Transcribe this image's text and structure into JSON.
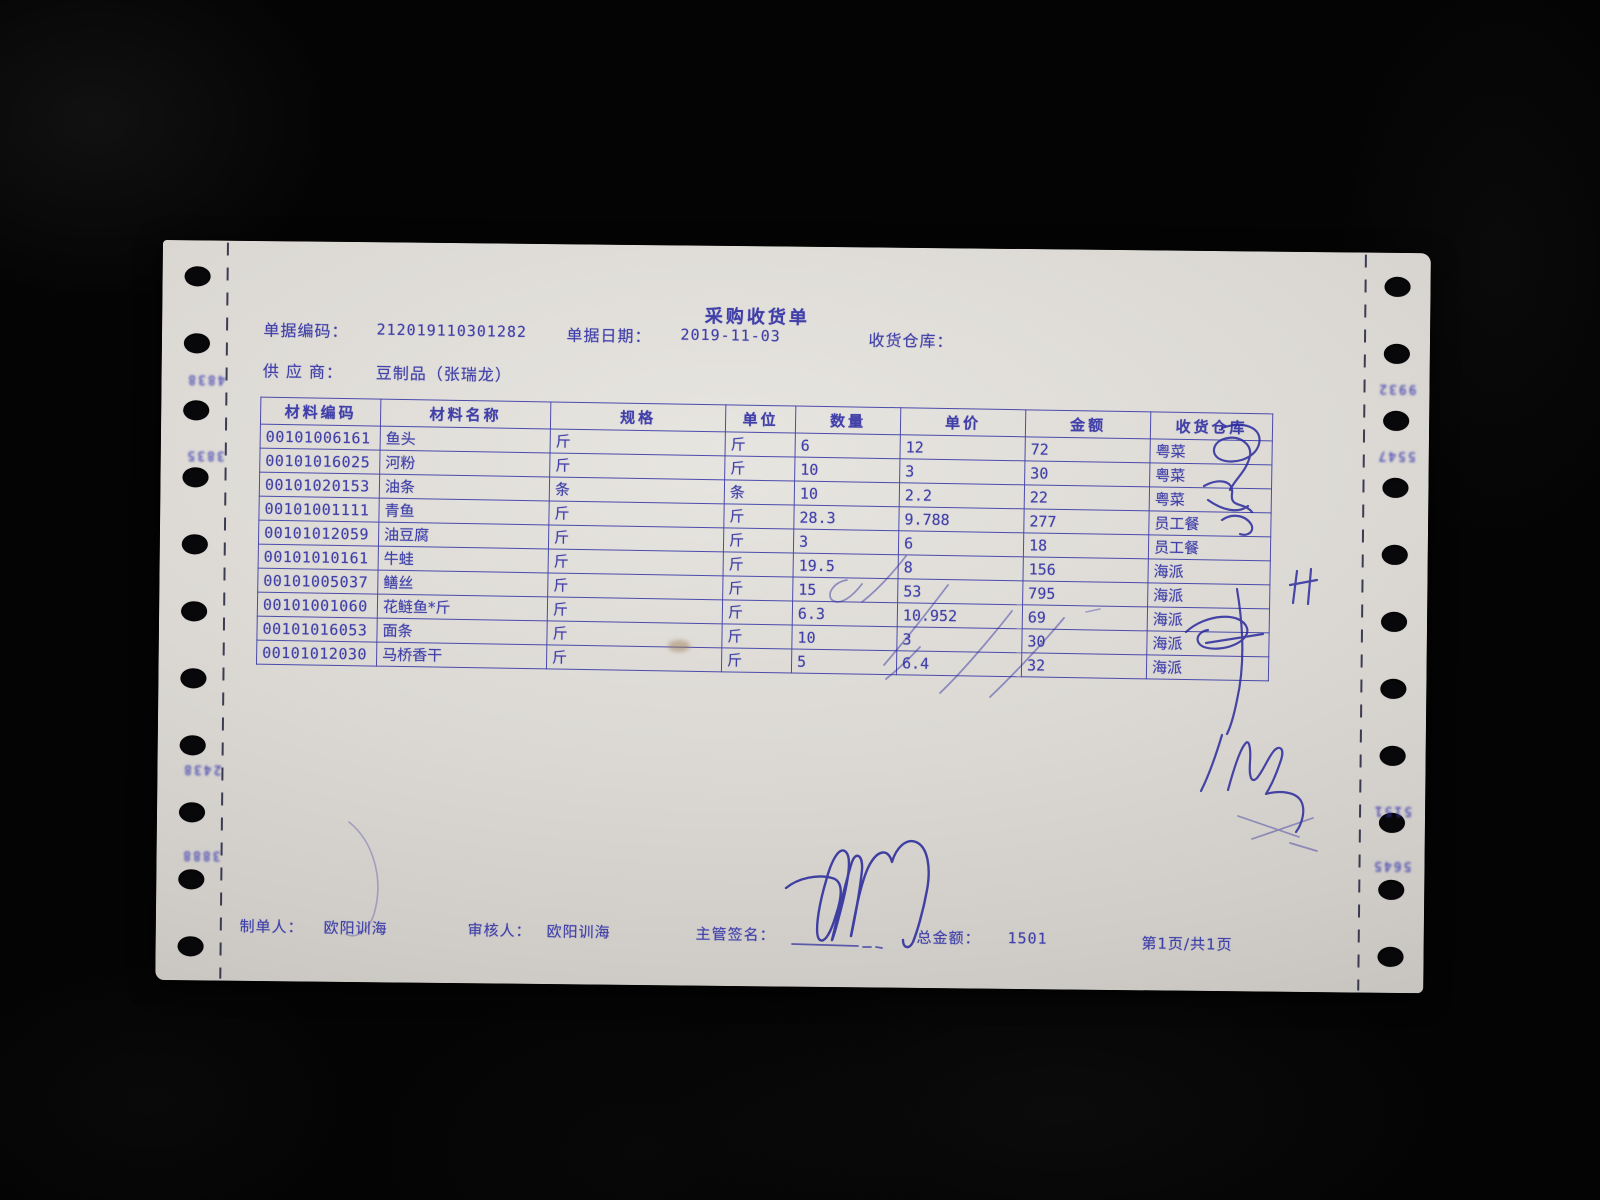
{
  "document": {
    "title": "采购收货单",
    "header": {
      "doc_code_label": "单据编码：",
      "doc_code": "212019110301282",
      "doc_date_label": "单据日期：",
      "doc_date": "2019-11-03",
      "warehouse_label": "收货仓库：",
      "warehouse_value": "",
      "supplier_label": "供 应 商：",
      "supplier_value": "豆制品（张瑞龙）"
    },
    "table": {
      "headers": [
        "材料编码",
        "材料名称",
        "规格",
        "单位",
        "数量",
        "单价",
        "金额",
        "收货仓库"
      ],
      "rows": [
        [
          "00101006161",
          "鱼头",
          "斤",
          "斤",
          "6",
          "12",
          "72",
          "粤菜"
        ],
        [
          "00101016025",
          "河粉",
          "斤",
          "斤",
          "10",
          "3",
          "30",
          "粤菜"
        ],
        [
          "00101020153",
          "油条",
          "条",
          "条",
          "10",
          "2.2",
          "22",
          "粤菜"
        ],
        [
          "00101001111",
          "青鱼",
          "斤",
          "斤",
          "28.3",
          "9.788",
          "277",
          "员工餐"
        ],
        [
          "00101012059",
          "油豆腐",
          "斤",
          "斤",
          "3",
          "6",
          "18",
          "员工餐"
        ],
        [
          "00101010161",
          "牛蛙",
          "斤",
          "斤",
          "19.5",
          "8",
          "156",
          "海派"
        ],
        [
          "00101005037",
          "鳝丝",
          "斤",
          "斤",
          "15",
          "53",
          "795",
          "海派"
        ],
        [
          "00101001060",
          "花鲢鱼*斤",
          "斤",
          "斤",
          "6.3",
          "10.952",
          "69",
          "海派"
        ],
        [
          "00101016053",
          "面条",
          "斤",
          "斤",
          "10",
          "3",
          "30",
          "海派"
        ],
        [
          "00101012030",
          "马桥香干",
          "斤",
          "斤",
          "5",
          "6.4",
          "32",
          "海派"
        ]
      ]
    },
    "footer": {
      "preparer_label": "制单人：",
      "preparer_value": "欧阳训海",
      "reviewer_label": "审核人：",
      "reviewer_value": "欧阳训海",
      "supervisor_sign_label": "主管签名：",
      "total_label": "总金额：",
      "total_value": "1501",
      "page_info": "第1页/共1页"
    }
  },
  "paper": {
    "edge_marks_left": [
      "4838",
      "3835",
      "2438",
      "3888"
    ],
    "edge_marks_right": [
      "9932",
      "5547",
      "5151",
      "5645"
    ]
  },
  "colors": {
    "ink": "#4040a8",
    "pen": "#2b2b9d",
    "paper": "#dcd9d4",
    "background": "#040404"
  }
}
